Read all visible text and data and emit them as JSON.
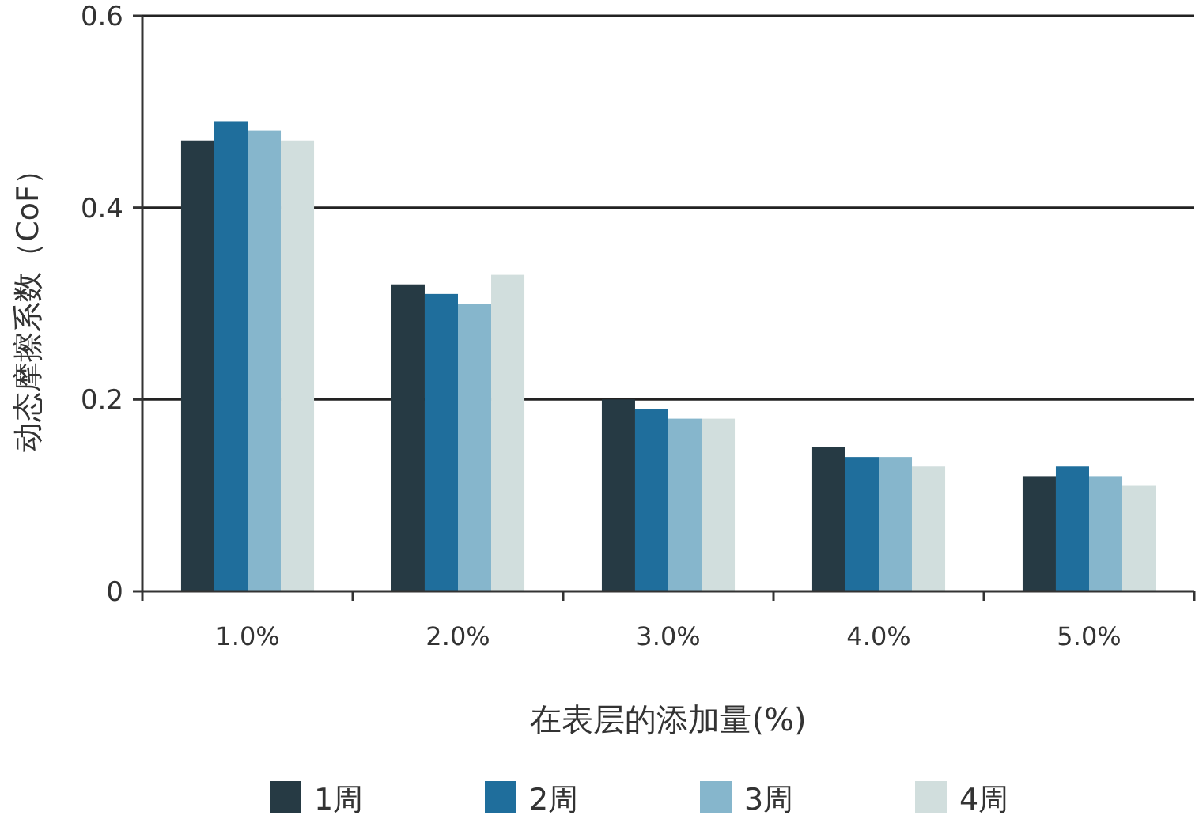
{
  "chart_data": {
    "type": "bar",
    "xlabel": "在表层的添加量(%)",
    "ylabel": "动态摩擦系数（CoF）",
    "categories": [
      "1.0%",
      "2.0%",
      "3.0%",
      "4.0%",
      "5.0%"
    ],
    "series": [
      {
        "name": "1周",
        "color": "#263a44",
        "values": [
          0.47,
          0.32,
          0.2,
          0.15,
          0.12
        ]
      },
      {
        "name": "2周",
        "color": "#1f6e9c",
        "values": [
          0.49,
          0.31,
          0.19,
          0.14,
          0.13
        ]
      },
      {
        "name": "3周",
        "color": "#86b6cc",
        "values": [
          0.48,
          0.3,
          0.18,
          0.14,
          0.12
        ]
      },
      {
        "name": "4周",
        "color": "#d1dedd",
        "values": [
          0.47,
          0.33,
          0.18,
          0.13,
          0.11
        ]
      }
    ],
    "ylim": [
      0,
      0.6
    ],
    "yticks": [
      0,
      0.2,
      0.4,
      0.6
    ],
    "grid": "y",
    "legend": "bottom"
  }
}
